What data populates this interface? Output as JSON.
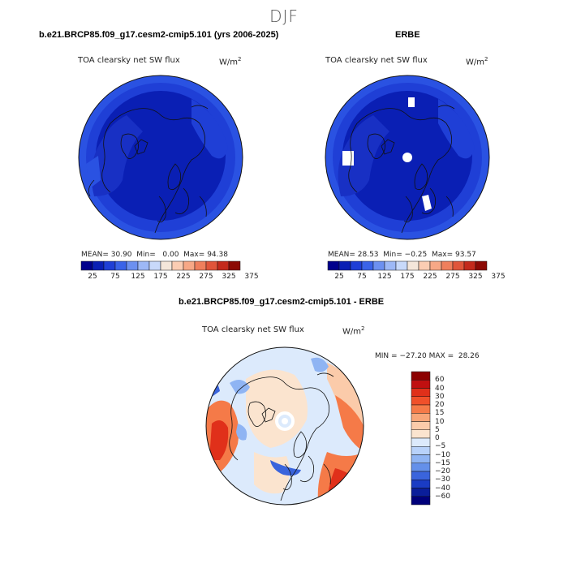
{
  "season": "DJF",
  "panels": [
    {
      "title": "b.e21.BRCP85.f09_g17.cesm2-cmip5.101 (yrs 2006-2025)",
      "variable": "TOA clearsky net SW flux",
      "units_base": "W/m",
      "units_exp": "2",
      "stats": {
        "mean_label": "MEAN=",
        "mean": "30.90",
        "min_label": "Min=",
        "min": "0.00",
        "max_label": "Max=",
        "max": "94.38"
      }
    },
    {
      "title": "ERBE",
      "variable": "TOA clearsky net SW flux",
      "units_base": "W/m",
      "units_exp": "2",
      "stats": {
        "mean_label": "MEAN=",
        "mean": "28.53",
        "min_label": "Min=",
        "min": "−0.25",
        "max_label": "Max=",
        "max": "93.57"
      }
    }
  ],
  "diff_panel": {
    "title": "b.e21.BRCP85.f09_g17.cesm2-cmip5.101 - ERBE",
    "variable": "TOA clearsky net SW flux",
    "units_base": "W/m",
    "units_exp": "2",
    "minmax": {
      "min_label": "MIN =",
      "min": "−27.20",
      "max_label": "MAX =",
      "max": "28.26"
    }
  },
  "colorbar_top": {
    "ticks": [
      "25",
      "75",
      "125",
      "175",
      "225",
      "275",
      "325",
      "375"
    ],
    "colors": [
      "#00008c",
      "#0a1fb4",
      "#1f3fd6",
      "#3a63e8",
      "#6c90f0",
      "#9db8f6",
      "#c8d9fa",
      "#f4e6da",
      "#fbcdb3",
      "#f7a886",
      "#ef7f5c",
      "#e0553a",
      "#c32a1c",
      "#8c0a05"
    ]
  },
  "colorbar_diff": {
    "ticks": [
      "60",
      "40",
      "30",
      "20",
      "15",
      "10",
      "5",
      "0",
      "−5",
      "−10",
      "−15",
      "−20",
      "−30",
      "−40",
      "−60"
    ],
    "colors": [
      "#8c0000",
      "#c01010",
      "#e0301a",
      "#f0502a",
      "#f57a48",
      "#f8a678",
      "#fbcbaa",
      "#fbe4cf",
      "#dceafc",
      "#b8d2fa",
      "#8fb4f3",
      "#6490ea",
      "#3a64dc",
      "#1a3cc4",
      "#0a1e9a",
      "#00007a"
    ]
  }
}
